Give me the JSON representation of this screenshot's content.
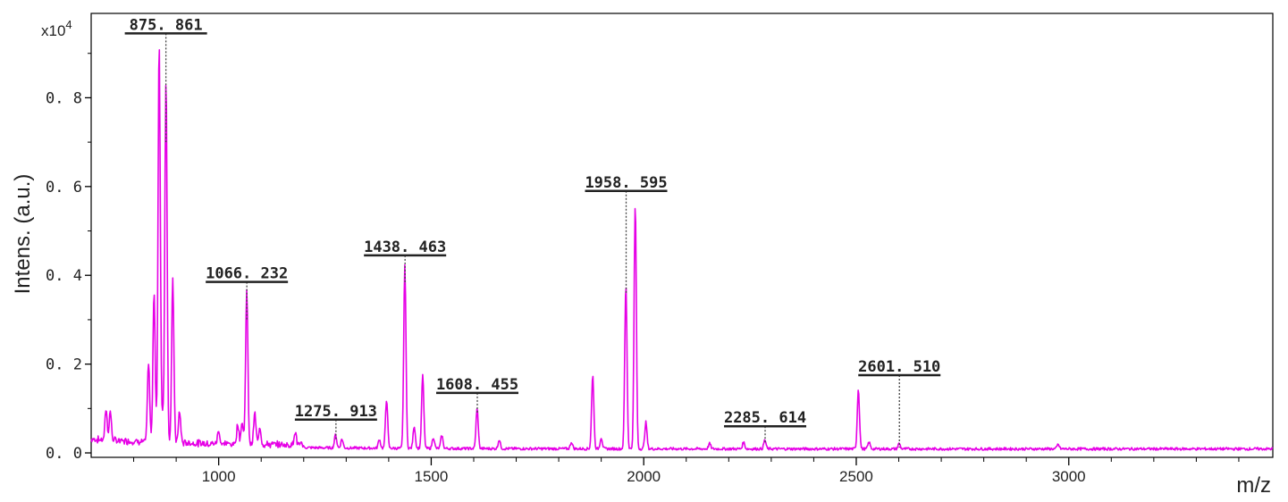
{
  "chart_data": {
    "type": "line",
    "title": "",
    "xlabel": "m/z",
    "ylabel": "Intens. (a.u.)",
    "y_multiplier": "x10",
    "y_multiplier_exponent": "4",
    "xlim": [
      700,
      3480
    ],
    "ylim": [
      -0.01,
      0.99
    ],
    "x_ticks": [
      "1000",
      "1500",
      "2000",
      "2500",
      "3000"
    ],
    "y_ticks": [
      "0.0",
      "0.2",
      "0.4",
      "0.6",
      "0.8"
    ],
    "grid": false,
    "series_color": "#e600e6",
    "series": [
      {
        "peaks": [
          {
            "x": 735,
            "y": 0.07
          },
          {
            "x": 745,
            "y": 0.065
          },
          {
            "x": 835,
            "y": 0.18
          },
          {
            "x": 848,
            "y": 0.34
          },
          {
            "x": 860,
            "y": 0.9
          },
          {
            "x": 868,
            "y": 0.06
          },
          {
            "x": 876,
            "y": 0.82
          },
          {
            "x": 892,
            "y": 0.37
          },
          {
            "x": 908,
            "y": 0.07
          },
          {
            "x": 1000,
            "y": 0.03
          },
          {
            "x": 1045,
            "y": 0.045
          },
          {
            "x": 1055,
            "y": 0.05
          },
          {
            "x": 1066,
            "y": 0.345
          },
          {
            "x": 1085,
            "y": 0.07
          },
          {
            "x": 1097,
            "y": 0.04
          },
          {
            "x": 1180,
            "y": 0.03
          },
          {
            "x": 1275,
            "y": 0.03
          },
          {
            "x": 1290,
            "y": 0.02
          },
          {
            "x": 1378,
            "y": 0.02
          },
          {
            "x": 1395,
            "y": 0.11
          },
          {
            "x": 1438,
            "y": 0.41
          },
          {
            "x": 1460,
            "y": 0.05
          },
          {
            "x": 1480,
            "y": 0.165
          },
          {
            "x": 1505,
            "y": 0.025
          },
          {
            "x": 1525,
            "y": 0.03
          },
          {
            "x": 1608,
            "y": 0.09
          },
          {
            "x": 1660,
            "y": 0.02
          },
          {
            "x": 1830,
            "y": 0.015
          },
          {
            "x": 1880,
            "y": 0.165
          },
          {
            "x": 1900,
            "y": 0.025
          },
          {
            "x": 1958,
            "y": 0.37
          },
          {
            "x": 1980,
            "y": 0.55
          },
          {
            "x": 2005,
            "y": 0.06
          },
          {
            "x": 2155,
            "y": 0.012
          },
          {
            "x": 2235,
            "y": 0.015
          },
          {
            "x": 2285,
            "y": 0.02
          },
          {
            "x": 2505,
            "y": 0.135
          },
          {
            "x": 2530,
            "y": 0.015
          },
          {
            "x": 2601,
            "y": 0.012
          },
          {
            "x": 2975,
            "y": 0.01
          }
        ]
      }
    ],
    "annotations": [
      {
        "label": "875. 861",
        "x": 875.861,
        "marker_top": 0.945,
        "marker_bottom": 0.7
      },
      {
        "label": "1066. 232",
        "x": 1066.232,
        "marker_top": 0.385,
        "marker_bottom": 0.3
      },
      {
        "label": "1275. 913",
        "x": 1275.913,
        "marker_top": 0.075,
        "marker_bottom": 0.03
      },
      {
        "label": "1438. 463",
        "x": 1438.463,
        "marker_top": 0.445,
        "marker_bottom": 0.38
      },
      {
        "label": "1608. 455",
        "x": 1608.455,
        "marker_top": 0.135,
        "marker_bottom": 0.09
      },
      {
        "label": "1958. 595",
        "x": 1958.595,
        "marker_top": 0.59,
        "marker_bottom": 0.36
      },
      {
        "label": "2285. 614",
        "x": 2285.614,
        "marker_top": 0.06,
        "marker_bottom": 0.02
      },
      {
        "label": "2601. 510",
        "x": 2601.51,
        "marker_top": 0.175,
        "marker_bottom": 0.012
      }
    ]
  }
}
